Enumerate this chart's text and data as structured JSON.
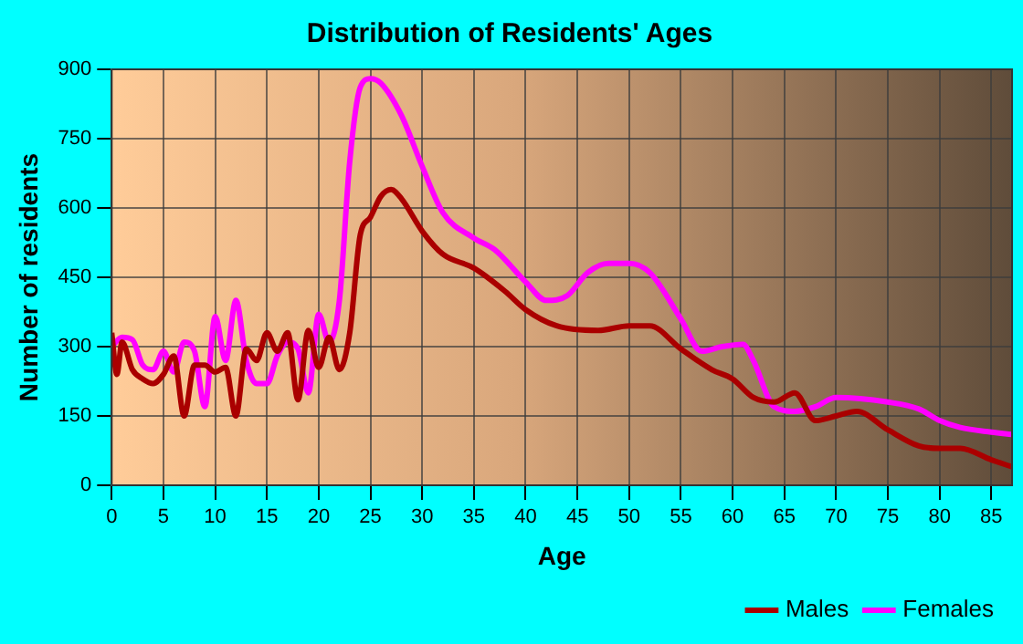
{
  "chart_data": {
    "type": "line",
    "title": "Distribution of Residents' Ages",
    "xlabel": "Age",
    "ylabel": "Number of residents",
    "xlim": [
      0,
      87
    ],
    "xticks": [
      0,
      5,
      10,
      15,
      20,
      25,
      30,
      35,
      40,
      45,
      50,
      55,
      60,
      65,
      70,
      75,
      80,
      85
    ],
    "ylim": [
      0,
      900
    ],
    "yticks": [
      0,
      150,
      300,
      450,
      600,
      750,
      900
    ],
    "grid": true,
    "legend": "bottom right",
    "marker": "none",
    "line_style": "solid",
    "series": [
      {
        "name": "Males",
        "color": "#aa0000",
        "x": [
          0,
          0.5,
          1,
          2,
          3,
          4,
          5,
          6,
          7,
          8,
          9,
          10,
          11,
          12,
          13,
          14,
          15,
          16,
          17,
          18,
          19,
          20,
          21,
          22,
          23,
          24,
          25,
          26,
          27,
          28,
          30,
          32,
          35,
          38,
          40,
          43,
          47,
          50,
          52,
          55,
          58,
          60,
          62,
          64,
          66,
          68,
          70,
          72,
          75,
          78,
          80,
          82,
          85,
          87
        ],
        "values": [
          330,
          240,
          310,
          250,
          230,
          220,
          240,
          280,
          150,
          260,
          260,
          245,
          255,
          150,
          295,
          270,
          330,
          290,
          330,
          185,
          335,
          255,
          320,
          250,
          330,
          540,
          580,
          625,
          640,
          620,
          550,
          500,
          470,
          420,
          380,
          345,
          335,
          345,
          345,
          295,
          250,
          230,
          190,
          180,
          200,
          140,
          150,
          160,
          120,
          85,
          80,
          80,
          55,
          40
        ]
      },
      {
        "name": "Females",
        "color": "#ff00ff",
        "x": [
          0,
          1,
          2,
          3,
          4,
          5,
          6,
          7,
          8,
          9,
          10,
          11,
          12,
          13,
          14,
          15,
          16,
          17,
          18,
          19,
          20,
          21,
          22,
          23,
          24,
          25,
          26,
          28,
          30,
          32,
          35,
          37,
          40,
          42,
          44,
          46,
          48,
          50,
          52,
          55,
          57,
          59,
          61,
          62,
          64,
          66,
          68,
          70,
          75,
          78,
          80,
          82,
          85,
          87
        ],
        "values": [
          300,
          320,
          315,
          260,
          250,
          290,
          245,
          310,
          290,
          170,
          365,
          270,
          400,
          270,
          220,
          220,
          280,
          310,
          295,
          200,
          370,
          310,
          400,
          700,
          860,
          880,
          870,
          800,
          690,
          590,
          535,
          510,
          440,
          400,
          410,
          460,
          480,
          480,
          460,
          360,
          290,
          300,
          305,
          270,
          170,
          160,
          170,
          190,
          180,
          165,
          140,
          125,
          115,
          110
        ]
      }
    ]
  }
}
